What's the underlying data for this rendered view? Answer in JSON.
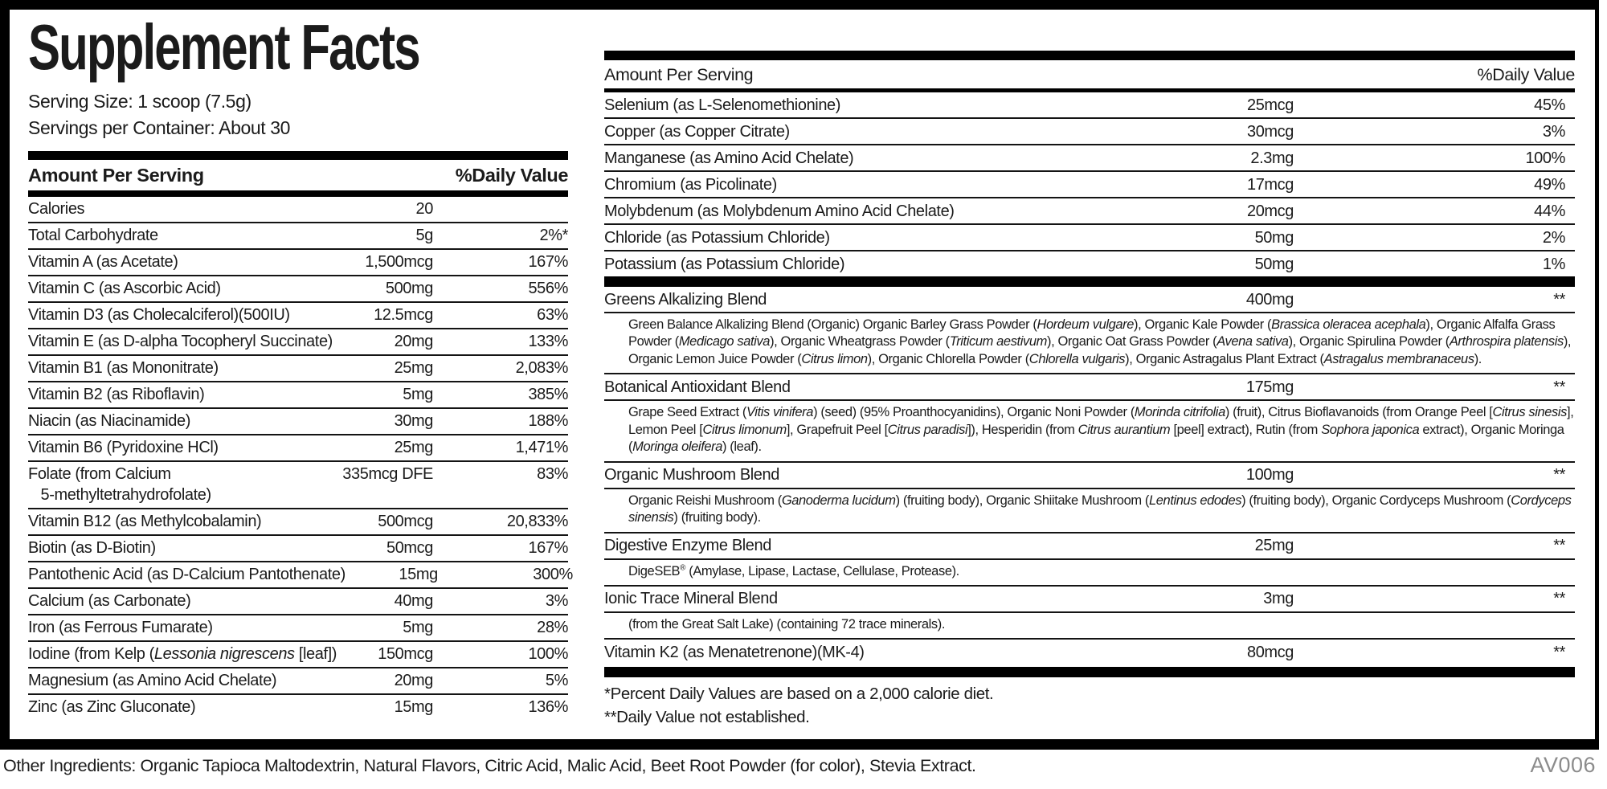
{
  "colors": {
    "ink": "#1b1b1b",
    "bar": "#000000",
    "code_gray": "#8c8c8c"
  },
  "label": {
    "title": "Supplement Facts",
    "serving_size": "Serving Size: 1 scoop (7.5g)",
    "servings_per_container": "Servings per Container: About 30",
    "left_header": {
      "amount_per_serving": "Amount Per Serving",
      "daily_value": "%Daily Value"
    },
    "right_header": {
      "amount_per_serving": "Amount Per Serving",
      "daily_value": "%Daily Value"
    },
    "left_rows": [
      {
        "name": "Calories",
        "amount": "20",
        "dv": ""
      },
      {
        "name": "Total Carbohydrate",
        "amount": "5g",
        "dv": "2%*"
      },
      {
        "name": "Vitamin A (as Acetate)",
        "amount": "1,500mcg",
        "dv": "167%"
      },
      {
        "name": "Vitamin C (as Ascorbic Acid)",
        "amount": "500mg",
        "dv": "556%"
      },
      {
        "name": "Vitamin D3 (as Cholecalciferol)(500IU)",
        "amount": "12.5mcg",
        "dv": "63%"
      },
      {
        "name": "Vitamin E (as D-alpha Tocopheryl Succinate)",
        "amount": "20mg",
        "dv": "133%"
      },
      {
        "name": "Vitamin B1 (as Mononitrate)",
        "amount": "25mg",
        "dv": "2,083%"
      },
      {
        "name": "Vitamin B2 (as Riboflavin)",
        "amount": "5mg",
        "dv": "385%"
      },
      {
        "name": "Niacin (as Niacinamide)",
        "amount": "30mg",
        "dv": "188%"
      },
      {
        "name": "Vitamin B6 (Pyridoxine HCl)",
        "amount": "25mg",
        "dv": "1,471%"
      },
      {
        "name": "Folate (from Calcium\n   5-methyltetrahydrofolate)",
        "amount": "335mcg DFE",
        "dv": "83%"
      },
      {
        "name": "Vitamin B12 (as Methylcobalamin)",
        "amount": "500mcg",
        "dv": "20,833%"
      },
      {
        "name": "Biotin (as D-Biotin)",
        "amount": "50mcg",
        "dv": "167%"
      },
      {
        "name": "Pantothenic Acid (as D-Calcium Pantothenate)",
        "amount": "15mg",
        "dv": "300%"
      },
      {
        "name": "Calcium (as Carbonate)",
        "amount": "40mg",
        "dv": "3%"
      },
      {
        "name": "Iron (as Ferrous Fumarate)",
        "amount": "5mg",
        "dv": "28%"
      },
      {
        "name": "Iodine (from Kelp ({i}Lessonia nigrescens{/i} [leaf])",
        "amount": "150mcg",
        "dv": "100%"
      },
      {
        "name": "Magnesium (as Amino Acid Chelate)",
        "amount": "20mg",
        "dv": "5%"
      },
      {
        "name": "Zinc (as Zinc Gluconate)",
        "amount": "15mg",
        "dv": "136%"
      }
    ],
    "right_rows": [
      {
        "name": "Selenium (as L-Selenomethionine)",
        "amount": "25mcg",
        "dv": "45%"
      },
      {
        "name": "Copper (as Copper Citrate)",
        "amount": "30mcg",
        "dv": "3%"
      },
      {
        "name": "Manganese (as Amino Acid Chelate)",
        "amount": "2.3mg",
        "dv": "100%"
      },
      {
        "name": "Chromium (as Picolinate)",
        "amount": "17mcg",
        "dv": "49%"
      },
      {
        "name": "Molybdenum (as Molybdenum Amino Acid Chelate)",
        "amount": "20mcg",
        "dv": "44%"
      },
      {
        "name": "Chloride (as Potassium Chloride)",
        "amount": "50mg",
        "dv": "2%"
      },
      {
        "name": "Potassium (as Potassium Chloride)",
        "amount": "50mg",
        "dv": "1%"
      }
    ],
    "blend_rows": [
      {
        "name": "Greens Alkalizing Blend",
        "amount": "400mg",
        "dv": "**",
        "desc": "Green Balance Alkalizing Blend (Organic) Organic Barley Grass Powder ({i}Hordeum vulgare{/i}), Organic Kale Powder ({i}Brassica oleracea acephala{/i}), Organic Alfalfa Grass Powder ({i}Medicago sativa{/i}), Organic Wheatgrass Powder ({i}Triticum aestivum{/i}), Organic Oat Grass Powder ({i}Avena sativa{/i}), Organic Spirulina Powder ({i}Arthrospira platensis{/i}), Organic Lemon Juice Powder ({i}Citrus limon{/i}), Organic Chlorella Powder ({i}Chlorella vulgaris{/i}), Organic Astragalus Plant Extract ({i}Astragalus membranaceus{/i})."
      },
      {
        "name": "Botanical Antioxidant Blend",
        "amount": "175mg",
        "dv": "**",
        "desc": "Grape Seed Extract ({i}Vitis vinifera{/i}) (seed) (95% Proanthocyanidins), Organic Noni Powder ({i}Morinda citrifolia{/i}) (fruit), Citrus Bioflavanoids (from Orange Peel [{i}Citrus sinesis{/i}], Lemon Peel [{i}Citrus limonum{/i}], Grapefruit Peel [{i}Citrus paradisi{/i}]), Hesperidin (from {i}Citrus aurantium{/i} [peel] extract), Rutin (from {i}Sophora japonica{/i} extract), Organic Moringa ({i}Moringa oleifera{/i}) (leaf)."
      },
      {
        "name": "Organic Mushroom Blend",
        "amount": "100mg",
        "dv": "**",
        "desc": "Organic Reishi Mushroom ({i}Ganoderma lucidum{/i}) (fruiting body), Organic Shiitake Mushroom ({i}Lentinus edodes{/i}) (fruiting body), Organic Cordyceps Mushroom ({i}Cordyceps sinensis{/i}) (fruiting body)."
      },
      {
        "name": "Digestive Enzyme Blend",
        "amount": "25mg",
        "dv": "**",
        "desc": "DigeSEB{sup}®{/sup} (Amylase, Lipase, Lactase, Cellulase, Protease)."
      },
      {
        "name": "Ionic Trace Mineral Blend",
        "amount": "3mg",
        "dv": "**",
        "desc": "(from the Great Salt Lake) (containing 72 trace minerals)."
      },
      {
        "name": "Vitamin K2 (as Menatetrenone)(MK-4)",
        "amount": "80mcg",
        "dv": "**",
        "desc": null
      }
    ],
    "footnotes": [
      "*Percent Daily Values are based on a 2,000 calorie diet.",
      "**Daily Value not established."
    ],
    "other_ingredients": "Other Ingredients: Organic Tapioca Maltodextrin, Natural Flavors, Citric Acid, Malic Acid, Beet Root Powder (for color), Stevia Extract.",
    "code": "AV006"
  }
}
